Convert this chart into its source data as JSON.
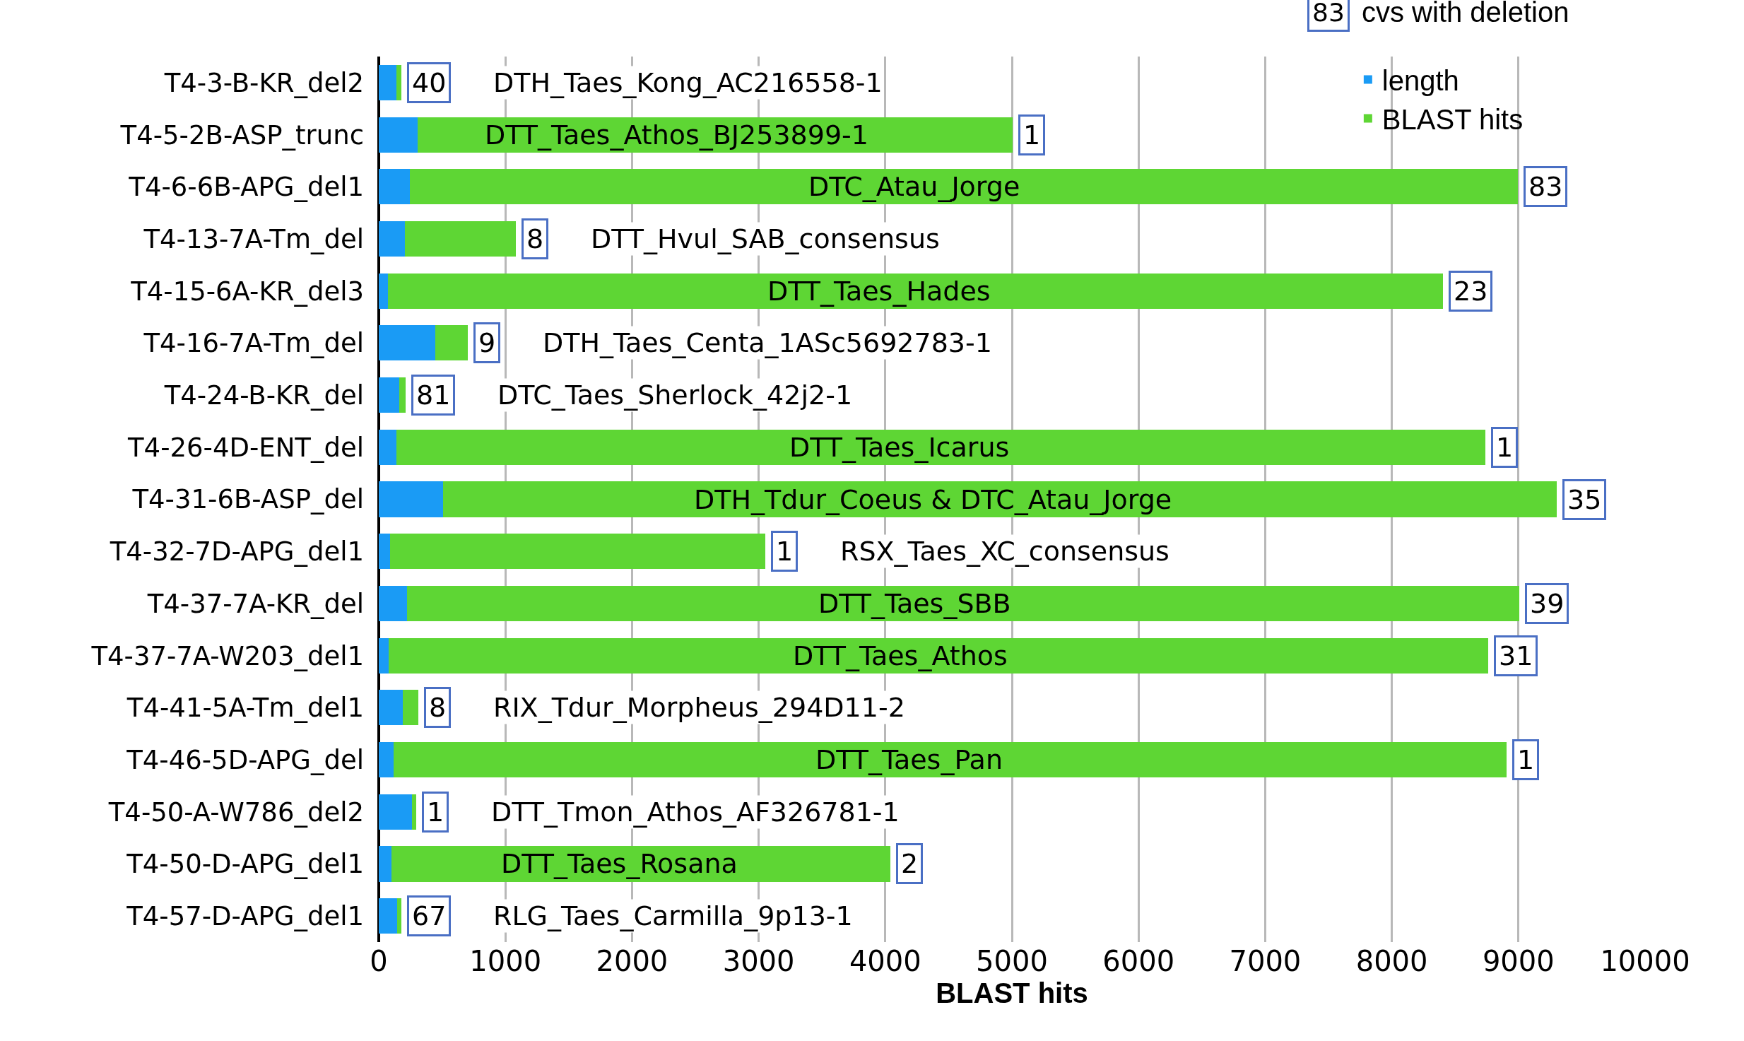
{
  "chart_data": {
    "type": "bar",
    "orientation": "horizontal",
    "stacked": true,
    "xlabel": "BLAST hits",
    "categories": [
      "T4-3-B-KR_del2",
      "T4-5-2B-ASP_trunc",
      "T4-6-6B-APG_del1",
      "T4-13-7A-Tm_del",
      "T4-15-6A-KR_del3",
      "T4-16-7A-Tm_del",
      "T4-24-B-KR_del",
      "T4-26-4D-ENT_del",
      "T4-31-6B-ASP_del",
      "T4-32-7D-APG_del1",
      "T4-37-7A-KR_del",
      "T4-37-7A-W203_del1",
      "T4-41-5A-Tm_del1",
      "T4-46-5D-APG_del",
      "T4-50-A-W786_del2",
      "T4-50-D-APG_del1",
      "T4-57-D-APG_del1"
    ],
    "series": [
      {
        "name": "length",
        "color": "#1a9bf5",
        "values": [
          140,
          305,
          245,
          205,
          75,
          445,
          160,
          140,
          505,
          90,
          225,
          80,
          190,
          115,
          260,
          100,
          145
        ]
      },
      {
        "name": "BLAST hits",
        "color": "#5ed634",
        "values": [
          40,
          4700,
          8750,
          880,
          8330,
          260,
          50,
          8600,
          8800,
          2960,
          8780,
          8680,
          120,
          8790,
          35,
          3940,
          35
        ]
      }
    ],
    "xlim": [
      0,
      10000
    ],
    "xticks": [
      0,
      1000,
      2000,
      3000,
      4000,
      5000,
      6000,
      7000,
      8000,
      9000,
      10000
    ],
    "grid": "x",
    "legend": "top right",
    "annotations": [
      "83",
      "cvs with deletion",
      "DTH_Taes_Kong_AC216558-1",
      "DTT_Taes_Athos_BJ253899-1",
      "DTC_Atau_Jorge",
      "DTT_Hvul_SAB_consensus",
      "DTT_Taes_Hades",
      "DTH_Taes_Centa_1ASc5692783-1",
      "DTC_Taes_Sherlock_42j2-1",
      "DTT_Taes_Icarus",
      "DTH_Tdur_Coeus & DTC_Atau_Jorge",
      "RSX_Taes_XC_consensus",
      "DTT_Taes_SBB",
      "DTT_Taes_Athos",
      "RIX_Tdur_Morpheus_294D11-2",
      "DTT_Taes_Pan",
      "DTT_Tmon_Athos_AF326781-1",
      "DTT_Taes_Rosana",
      "RLG_Taes_Carmilla_9p13-1",
      {
        "text": "40",
        "x": 180,
        "y": "T4-3-B-KR_del2"
      },
      {
        "text": "1",
        "x": 5005,
        "y": "T4-5-2B-ASP_trunc"
      },
      {
        "text": "83",
        "x": 8995,
        "y": "T4-6-6B-APG_del1"
      },
      {
        "text": "8",
        "x": 1085,
        "y": "T4-13-7A-Tm_del"
      },
      {
        "text": "23",
        "x": 8405,
        "y": "T4-15-6A-KR_del3"
      },
      {
        "text": "9",
        "x": 705,
        "y": "T4-16-7A-Tm_del"
      },
      {
        "text": "81",
        "x": 210,
        "y": "T4-24-B-KR_del"
      },
      {
        "text": "1",
        "x": 8740,
        "y": "T4-26-4D-ENT_del"
      },
      {
        "text": "35",
        "x": 9305,
        "y": "T4-31-6B-ASP_del"
      },
      {
        "text": "1",
        "x": 3050,
        "y": "T4-32-7D-APG_del1"
      },
      {
        "text": "39",
        "x": 9005,
        "y": "T4-37-7A-KR_del"
      },
      {
        "text": "31",
        "x": 8760,
        "y": "T4-37-7A-W203_del1"
      },
      {
        "text": "8",
        "x": 310,
        "y": "T4-41-5A-Tm_del1"
      },
      {
        "text": "1",
        "x": 8905,
        "y": "T4-46-5D-APG_del"
      },
      {
        "text": "1",
        "x": 295,
        "y": "T4-50-A-W786_del2"
      },
      {
        "text": "2",
        "x": 4040,
        "y": "T4-50-D-APG_del1"
      },
      {
        "text": "67",
        "x": 180,
        "y": "T4-57-D-APG_del1"
      }
    ]
  }
}
